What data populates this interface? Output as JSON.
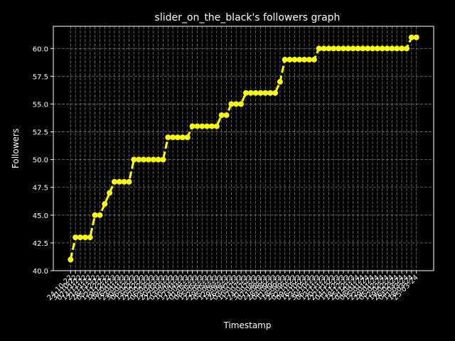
{
  "chart_data": {
    "type": "line",
    "title": "slider_on_the_black's followers graph",
    "x_label": "Timestamp",
    "y_label": "Followers",
    "categories": [
      "24-10-22",
      "31-10-22",
      "07-11-22",
      "14-11-22",
      "21-11-22",
      "28-11-22",
      "05-12-22",
      "12-12-22",
      "19-12-22",
      "09-01-23",
      "16-01-23",
      "23-01-23",
      "30-01-23",
      "06-02-23",
      "13-02-23",
      "20-02-23",
      "27-02-23",
      "06-03-23",
      "13-03-23",
      "20-03-23",
      "27-03-23",
      "03-04-23",
      "10-04-23",
      "17-04-23",
      "24-04-23",
      "01-05-23",
      "08-05-23",
      "15-05-23",
      "22-05-23",
      "29-05-23",
      "05-06-23",
      "12-06-23",
      "19-06-23",
      "26-06-23",
      "03-07-23",
      "10-07-23",
      "17-07-23",
      "24-07-23",
      "31-07-23",
      "07-08-23",
      "21-08-23",
      "28-08-23",
      "04-09-23",
      "11-09-23",
      "18-09-23",
      "25-09-23",
      "02-10-23",
      "09-10-23",
      "16-10-23",
      "23-10-23",
      "30-10-23",
      "06-11-23",
      "13-11-23",
      "20-11-23",
      "27-11-23",
      "04-12-23",
      "11-12-23",
      "18-12-23",
      "25-12-23",
      "01-01-24",
      "08-01-24",
      "15-01-24",
      "22-01-24",
      "29-01-24",
      "05-02-24",
      "12-02-24",
      "19-02-24",
      "26-02-24",
      "04-03-24",
      "11-03-24",
      "18-03-24",
      "25-03-24"
    ],
    "series": [
      {
        "name": "Followers",
        "color": "#ffff00",
        "values": [
          41,
          43,
          43,
          43,
          43,
          45,
          45,
          46,
          47,
          48,
          48,
          48,
          48,
          50,
          50,
          50,
          50,
          50,
          50,
          50,
          52,
          52,
          52,
          52,
          52,
          53,
          53,
          53,
          53,
          53,
          53,
          54,
          54,
          55,
          55,
          55,
          56,
          56,
          56,
          56,
          56,
          56,
          56,
          57,
          59,
          59,
          59,
          59,
          59,
          59,
          59,
          60,
          60,
          60,
          60,
          60,
          60,
          60,
          60,
          60,
          60,
          60,
          60,
          60,
          60,
          60,
          60,
          60,
          60,
          60,
          61,
          61
        ]
      }
    ],
    "ylim": [
      40,
      62
    ],
    "yticks": [
      {
        "value": 40,
        "label": "40.0"
      },
      {
        "value": 42.5,
        "label": "42.5"
      },
      {
        "value": 45,
        "label": "45.0"
      },
      {
        "value": 47.5,
        "label": "47.5"
      },
      {
        "value": 50,
        "label": "50.0"
      },
      {
        "value": 52.5,
        "label": "52.5"
      },
      {
        "value": 55,
        "label": "55.0"
      },
      {
        "value": 57.5,
        "label": "57.5"
      },
      {
        "value": 60,
        "label": "60.0"
      }
    ],
    "grid": true
  }
}
